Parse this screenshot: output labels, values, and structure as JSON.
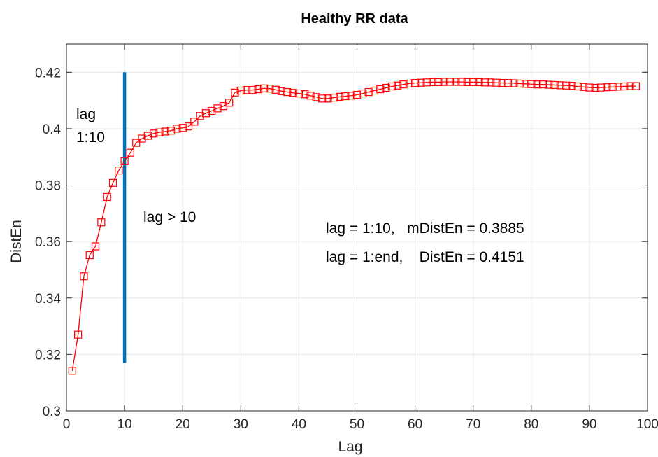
{
  "chart_data": {
    "type": "line",
    "title": "Healthy RR data",
    "xlabel": "Lag",
    "ylabel": "DistEn",
    "xlim": [
      0,
      100
    ],
    "ylim": [
      0.3,
      0.43
    ],
    "xticks": [
      0,
      10,
      20,
      30,
      40,
      50,
      60,
      70,
      80,
      90,
      100
    ],
    "yticks": [
      0.3,
      0.32,
      0.34,
      0.36,
      0.38,
      0.4,
      0.42
    ],
    "ytick_labels": [
      "0.3",
      "0.32",
      "0.34",
      "0.36",
      "0.38",
      "0.4",
      "0.42"
    ],
    "grid": true,
    "colors": {
      "series": "#ff0000",
      "vline": "#0072bd"
    },
    "series": [
      {
        "marker": "square",
        "x": [
          1,
          2,
          3,
          4,
          5,
          6,
          7,
          8,
          9,
          10,
          11,
          12,
          13,
          14,
          15,
          16,
          17,
          18,
          19,
          20,
          21,
          22,
          23,
          24,
          25,
          26,
          27,
          28,
          29,
          30,
          31,
          32,
          33,
          34,
          35,
          36,
          37,
          38,
          39,
          40,
          41,
          42,
          43,
          44,
          45,
          46,
          47,
          48,
          49,
          50,
          51,
          52,
          53,
          54,
          55,
          56,
          57,
          58,
          59,
          60,
          61,
          62,
          63,
          64,
          65,
          66,
          67,
          68,
          69,
          70,
          71,
          72,
          73,
          74,
          75,
          76,
          77,
          78,
          79,
          80,
          81,
          82,
          83,
          84,
          85,
          86,
          87,
          88,
          89,
          90,
          91,
          92,
          93,
          94,
          95,
          96,
          97,
          98
        ],
        "y": [
          0.3142,
          0.327,
          0.3477,
          0.3552,
          0.3583,
          0.3668,
          0.3758,
          0.3808,
          0.3852,
          0.3885,
          0.3915,
          0.395,
          0.3965,
          0.3975,
          0.3983,
          0.3987,
          0.399,
          0.3993,
          0.4,
          0.4003,
          0.4008,
          0.4025,
          0.4045,
          0.4055,
          0.4063,
          0.4072,
          0.408,
          0.4092,
          0.4128,
          0.4135,
          0.4137,
          0.4137,
          0.414,
          0.4143,
          0.4142,
          0.4138,
          0.4133,
          0.413,
          0.4127,
          0.4125,
          0.4122,
          0.4117,
          0.4112,
          0.4107,
          0.4107,
          0.411,
          0.4113,
          0.4115,
          0.4117,
          0.412,
          0.4125,
          0.413,
          0.4135,
          0.414,
          0.4145,
          0.415,
          0.4153,
          0.4157,
          0.416,
          0.4162,
          0.4163,
          0.4164,
          0.4165,
          0.4165,
          0.4166,
          0.4166,
          0.4166,
          0.4166,
          0.4165,
          0.4165,
          0.4165,
          0.4164,
          0.4164,
          0.4163,
          0.4162,
          0.4162,
          0.4161,
          0.416,
          0.4159,
          0.4158,
          0.4157,
          0.4157,
          0.4156,
          0.4155,
          0.4154,
          0.4153,
          0.4152,
          0.415,
          0.4148,
          0.4146,
          0.4145,
          0.4146,
          0.4147,
          0.4148,
          0.4149,
          0.415,
          0.4151,
          0.4151
        ]
      }
    ],
    "vertical_line": {
      "x": 10,
      "y_from": 0.317,
      "y_to": 0.42
    },
    "annotations": {
      "lag_label": [
        "lag",
        "1:10"
      ],
      "lag_gt": "lag > 10",
      "stat1": "lag = 1:10,   mDistEn = 0.3885",
      "stat2": "lag = 1:end,    DistEn = 0.4151"
    }
  }
}
